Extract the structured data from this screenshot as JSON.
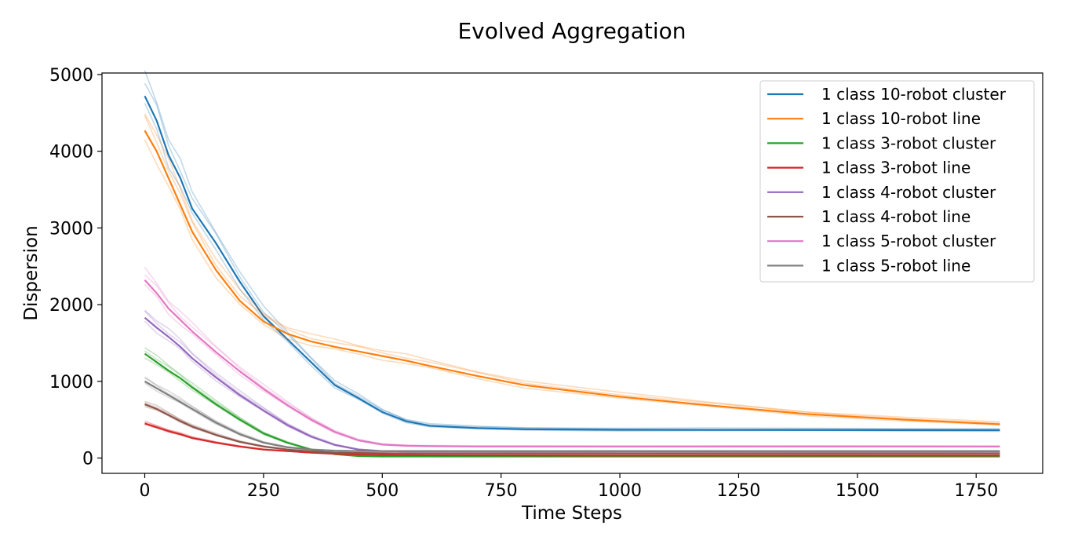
{
  "chart_data": {
    "type": "line",
    "title": "Evolved Aggregation",
    "xlabel": "Time Steps",
    "ylabel": "Dispersion",
    "xlim": [
      -90,
      1890
    ],
    "ylim": [
      -200,
      5020
    ],
    "xticks": [
      0,
      250,
      500,
      750,
      1000,
      1250,
      1500,
      1750
    ],
    "yticks": [
      0,
      1000,
      2000,
      3000,
      4000,
      5000
    ],
    "legend_position": "top-right",
    "grid": false,
    "x": [
      0,
      25,
      50,
      75,
      100,
      150,
      200,
      250,
      300,
      350,
      400,
      450,
      500,
      550,
      600,
      700,
      800,
      1000,
      1200,
      1400,
      1600,
      1800
    ],
    "series": [
      {
        "name": "1 class 10-robot cluster",
        "color": "#1f77b4",
        "values": [
          4720,
          4400,
          3950,
          3650,
          3250,
          2800,
          2300,
          1850,
          1550,
          1250,
          950,
          780,
          600,
          480,
          420,
          390,
          375,
          368,
          366,
          365,
          364,
          363
        ]
      },
      {
        "name": "1 class 10-robot line",
        "color": "#ff7f0e",
        "values": [
          4270,
          4000,
          3650,
          3300,
          2950,
          2450,
          2050,
          1780,
          1620,
          1520,
          1450,
          1390,
          1330,
          1270,
          1200,
          1070,
          950,
          800,
          680,
          570,
          500,
          440
        ]
      },
      {
        "name": "1 class 3-robot cluster",
        "color": "#2ca02c",
        "values": [
          1360,
          1250,
          1140,
          1040,
          920,
          700,
          500,
          320,
          200,
          110,
          50,
          25,
          20,
          20,
          20,
          20,
          20,
          20,
          20,
          20,
          20,
          20
        ]
      },
      {
        "name": "1 class 3-robot line",
        "color": "#d62728",
        "values": [
          450,
          400,
          350,
          310,
          260,
          200,
          150,
          110,
          90,
          70,
          55,
          45,
          40,
          38,
          36,
          35,
          34,
          33,
          33,
          33,
          33,
          33
        ]
      },
      {
        "name": "1 class 4-robot cluster",
        "color": "#9467bd",
        "values": [
          1830,
          1700,
          1580,
          1450,
          1300,
          1050,
          820,
          620,
          430,
          280,
          170,
          110,
          90,
          85,
          85,
          85,
          85,
          85,
          85,
          85,
          85,
          85
        ]
      },
      {
        "name": "1 class 4-robot line",
        "color": "#8c564b",
        "values": [
          700,
          640,
          560,
          480,
          410,
          300,
          210,
          150,
          110,
          85,
          70,
          65,
          62,
          60,
          60,
          60,
          60,
          60,
          60,
          60,
          60,
          60
        ]
      },
      {
        "name": "1 class 5-robot cluster",
        "color": "#e377c2",
        "values": [
          2320,
          2150,
          1950,
          1800,
          1650,
          1380,
          1130,
          900,
          690,
          500,
          340,
          230,
          175,
          160,
          155,
          150,
          150,
          150,
          150,
          150,
          150,
          150
        ]
      },
      {
        "name": "1 class 5-robot line",
        "color": "#7f7f7f",
        "values": [
          1000,
          910,
          820,
          730,
          640,
          460,
          310,
          200,
          140,
          110,
          95,
          90,
          90,
          90,
          90,
          90,
          90,
          90,
          90,
          90,
          90,
          90
        ]
      }
    ]
  }
}
